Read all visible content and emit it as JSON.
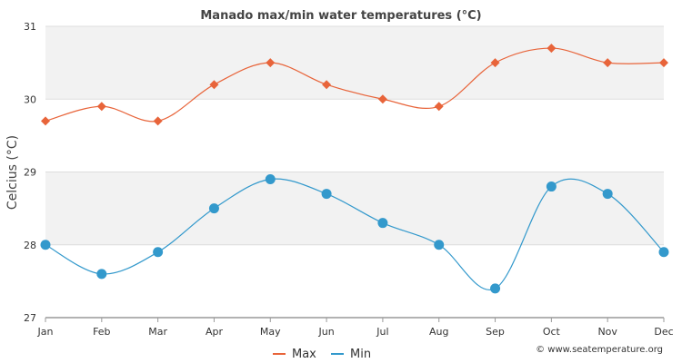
{
  "chart_data": {
    "type": "line",
    "title": "Manado max/min water temperatures (°C)",
    "xlabel": "",
    "ylabel": "Celcius (°C)",
    "categories": [
      "Jan",
      "Feb",
      "Mar",
      "Apr",
      "May",
      "Jun",
      "Jul",
      "Aug",
      "Sep",
      "Oct",
      "Nov",
      "Dec"
    ],
    "ylim": [
      27,
      31
    ],
    "yticks": [
      27,
      28,
      29,
      30,
      31
    ],
    "grid": true,
    "legend_position": "bottom-center",
    "series": [
      {
        "name": "Max",
        "color": "#e8643a",
        "marker": "diamond",
        "values": [
          29.7,
          29.9,
          29.7,
          30.2,
          30.5,
          30.2,
          30.0,
          29.9,
          30.5,
          30.7,
          30.5,
          30.5
        ]
      },
      {
        "name": "Min",
        "color": "#3399cc",
        "marker": "circle",
        "values": [
          28.0,
          27.6,
          27.9,
          28.5,
          28.9,
          28.7,
          28.3,
          28.0,
          27.4,
          28.8,
          28.7,
          27.9
        ]
      }
    ]
  },
  "credit": "© www.seatemperature.org"
}
